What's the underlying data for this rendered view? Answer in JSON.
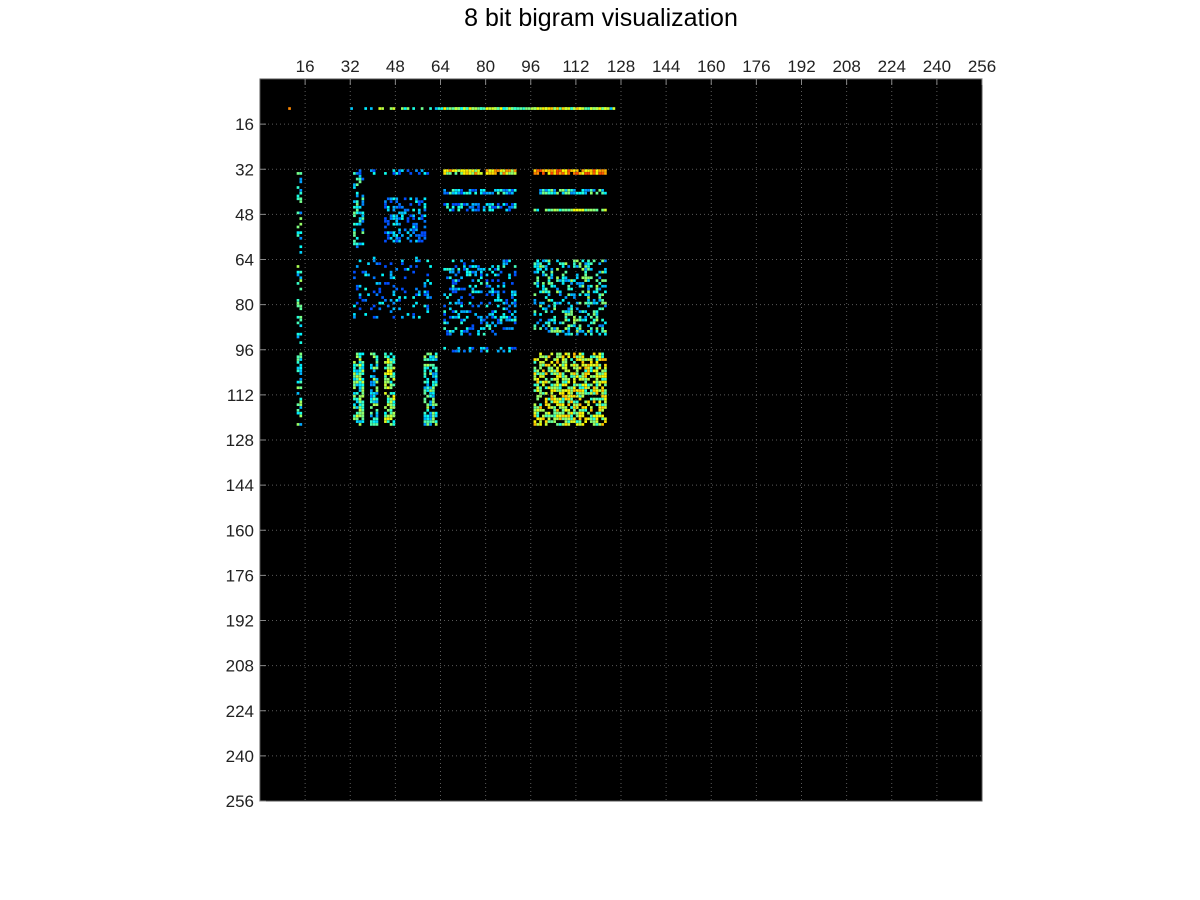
{
  "chart_data": {
    "type": "heatmap",
    "title": "8 bit bigram visualization",
    "xlabel": "",
    "ylabel": "",
    "x_axis_position": "top",
    "y_axis_direction": "reversed",
    "xlim": [
      0,
      256
    ],
    "ylim": [
      0,
      256
    ],
    "grid": true,
    "grid_style": "dotted",
    "background_color": "#000000",
    "colormap": "jet",
    "colormap_stops": [
      "#000000",
      "#0000ff",
      "#00ffff",
      "#ffff00",
      "#ff0000"
    ],
    "x_ticks": [
      16,
      32,
      48,
      64,
      80,
      96,
      112,
      128,
      144,
      160,
      176,
      192,
      208,
      224,
      240,
      256
    ],
    "y_ticks": [
      16,
      32,
      48,
      64,
      80,
      96,
      112,
      128,
      144,
      160,
      176,
      192,
      208,
      224,
      240,
      256
    ],
    "x_tick_labels": [
      "16",
      "32",
      "48",
      "64",
      "80",
      "96",
      "112",
      "128",
      "144",
      "160",
      "176",
      "192",
      "208",
      "224",
      "240",
      "256"
    ],
    "y_tick_labels": [
      "16",
      "32",
      "48",
      "64",
      "80",
      "96",
      "112",
      "128",
      "144",
      "160",
      "176",
      "192",
      "208",
      "224",
      "240",
      "256"
    ],
    "blocks": [
      {
        "x": [
          32,
          126
        ],
        "y": [
          10,
          10
        ],
        "density": 0.6,
        "intensity": 0.45
      },
      {
        "x": [
          65,
          90
        ],
        "y": [
          10,
          10
        ],
        "density": 0.9,
        "intensity": 0.5
      },
      {
        "x": [
          97,
          122
        ],
        "y": [
          10,
          10
        ],
        "density": 0.95,
        "intensity": 0.55
      },
      {
        "x": [
          65,
          90
        ],
        "y": [
          32,
          33
        ],
        "density": 0.9,
        "intensity": 0.6
      },
      {
        "x": [
          97,
          122
        ],
        "y": [
          32,
          33
        ],
        "density": 0.95,
        "intensity": 0.75
      },
      {
        "x": [
          65,
          90
        ],
        "y": [
          39,
          40
        ],
        "density": 0.7,
        "intensity": 0.35
      },
      {
        "x": [
          97,
          122
        ],
        "y": [
          39,
          40
        ],
        "density": 0.8,
        "intensity": 0.4
      },
      {
        "x": [
          65,
          90
        ],
        "y": [
          44,
          46
        ],
        "density": 0.6,
        "intensity": 0.3
      },
      {
        "x": [
          97,
          122
        ],
        "y": [
          46,
          46
        ],
        "density": 0.85,
        "intensity": 0.5
      },
      {
        "x": [
          33,
          36
        ],
        "y": [
          32,
          59
        ],
        "density": 0.5,
        "intensity": 0.35
      },
      {
        "x": [
          38,
          60
        ],
        "y": [
          32,
          33
        ],
        "density": 0.4,
        "intensity": 0.25
      },
      {
        "x": [
          44,
          58
        ],
        "y": [
          42,
          57
        ],
        "density": 0.45,
        "intensity": 0.25
      },
      {
        "x": [
          33,
          60
        ],
        "y": [
          63,
          84
        ],
        "density": 0.18,
        "intensity": 0.25
      },
      {
        "x": [
          65,
          90
        ],
        "y": [
          64,
          90
        ],
        "density": 0.35,
        "intensity": 0.3
      },
      {
        "x": [
          97,
          122
        ],
        "y": [
          64,
          90
        ],
        "density": 0.4,
        "intensity": 0.4
      },
      {
        "x": [
          65,
          90
        ],
        "y": [
          95,
          96
        ],
        "density": 0.4,
        "intensity": 0.25
      },
      {
        "x": [
          97,
          122
        ],
        "y": [
          97,
          122
        ],
        "density": 0.65,
        "intensity": 0.55
      },
      {
        "x": [
          33,
          36
        ],
        "y": [
          97,
          122
        ],
        "density": 0.7,
        "intensity": 0.45
      },
      {
        "x": [
          39,
          41
        ],
        "y": [
          97,
          122
        ],
        "density": 0.6,
        "intensity": 0.4
      },
      {
        "x": [
          44,
          47
        ],
        "y": [
          97,
          122
        ],
        "density": 0.7,
        "intensity": 0.5
      },
      {
        "x": [
          58,
          62
        ],
        "y": [
          97,
          122
        ],
        "density": 0.6,
        "intensity": 0.4
      },
      {
        "x": [
          13,
          14
        ],
        "y": [
          32,
          122
        ],
        "density": 0.4,
        "intensity": 0.4
      },
      {
        "x": [
          10,
          10
        ],
        "y": [
          10,
          10
        ],
        "density": 1.0,
        "intensity": 0.75
      }
    ]
  }
}
